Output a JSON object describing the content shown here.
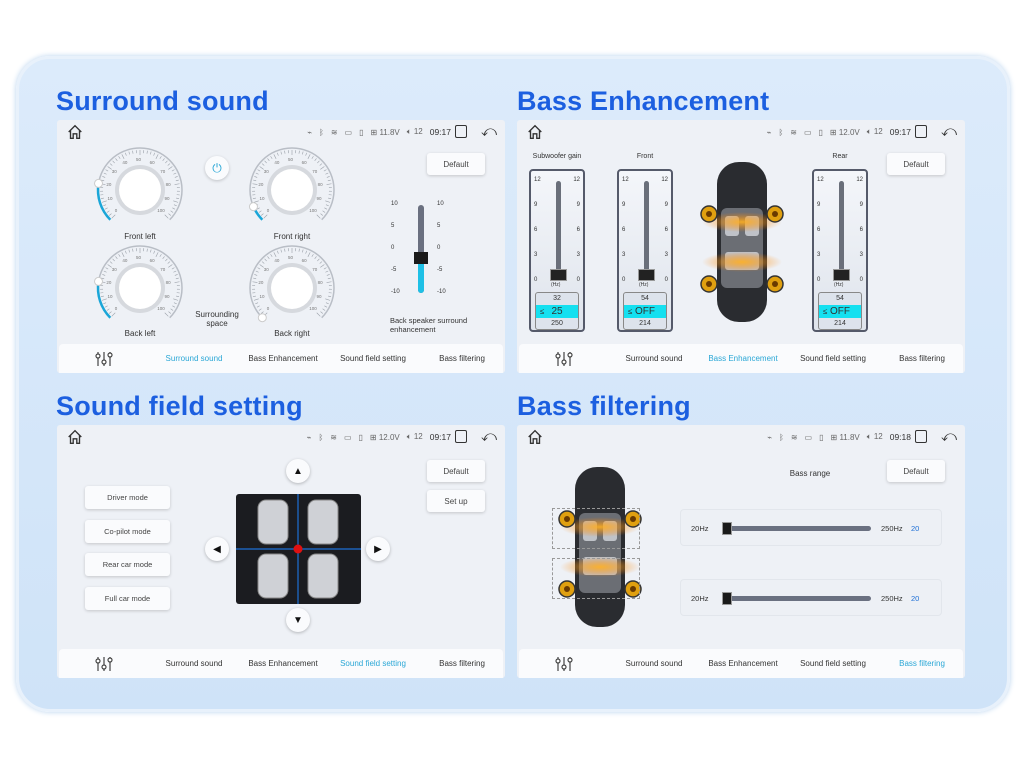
{
  "titles": {
    "surround": "Surround sound",
    "bass_enh": "Bass Enhancement",
    "sound_field": "Sound field setting",
    "bass_filter": "Bass filtering"
  },
  "nav": {
    "items": [
      "Surround sound",
      "Bass Enhancement",
      "Sound field setting",
      "Bass filtering"
    ],
    "accent": "#2aa7d6"
  },
  "status": [
    {
      "voltage": "11.8V",
      "volume": "12",
      "time": "09:17"
    },
    {
      "voltage": "12.0V",
      "volume": "12",
      "time": "09:17"
    },
    {
      "voltage": "12.0V",
      "volume": "12",
      "time": "09:17"
    },
    {
      "voltage": "11.8V",
      "volume": "12",
      "time": "09:18"
    }
  ],
  "default_label": "Default",
  "surround": {
    "dials": [
      {
        "label": "Front left",
        "value": 20
      },
      {
        "label": "Front right",
        "value": 8
      },
      {
        "label": "Back left",
        "value": 20
      },
      {
        "label": "Back right",
        "value": 0
      }
    ],
    "dial_ticks": [
      "0",
      "10",
      "20",
      "30",
      "40",
      "50",
      "60",
      "70",
      "80",
      "90",
      "100"
    ],
    "space_label": "Surrounding space",
    "back_slider": {
      "label": "Back speaker surround enhancement",
      "ticks": [
        "10",
        "5",
        "0",
        "-5",
        "-10"
      ],
      "value": -2
    }
  },
  "bass_enh": {
    "gauges": [
      {
        "label": "Subwoofer gain",
        "above": "32",
        "selected": "25",
        "below": "250"
      },
      {
        "label": "Front",
        "above": "54",
        "selected": "OFF",
        "below": "214"
      },
      {
        "label": "Rear",
        "above": "54",
        "selected": "OFF",
        "below": "214"
      }
    ],
    "ticks": [
      "12",
      "9",
      "6",
      "3",
      "0"
    ],
    "unit": "(Hz)",
    "le": "≤"
  },
  "sound_field": {
    "modes": [
      "Driver mode",
      "Co-pilot mode",
      "Rear car mode",
      "Full car mode"
    ],
    "setup_label": "Set up"
  },
  "bass_filter": {
    "range_label": "Bass range",
    "rows": [
      {
        "min": "20Hz",
        "max": "250Hz",
        "value": "20"
      },
      {
        "min": "20Hz",
        "max": "250Hz",
        "value": "20"
      }
    ]
  }
}
